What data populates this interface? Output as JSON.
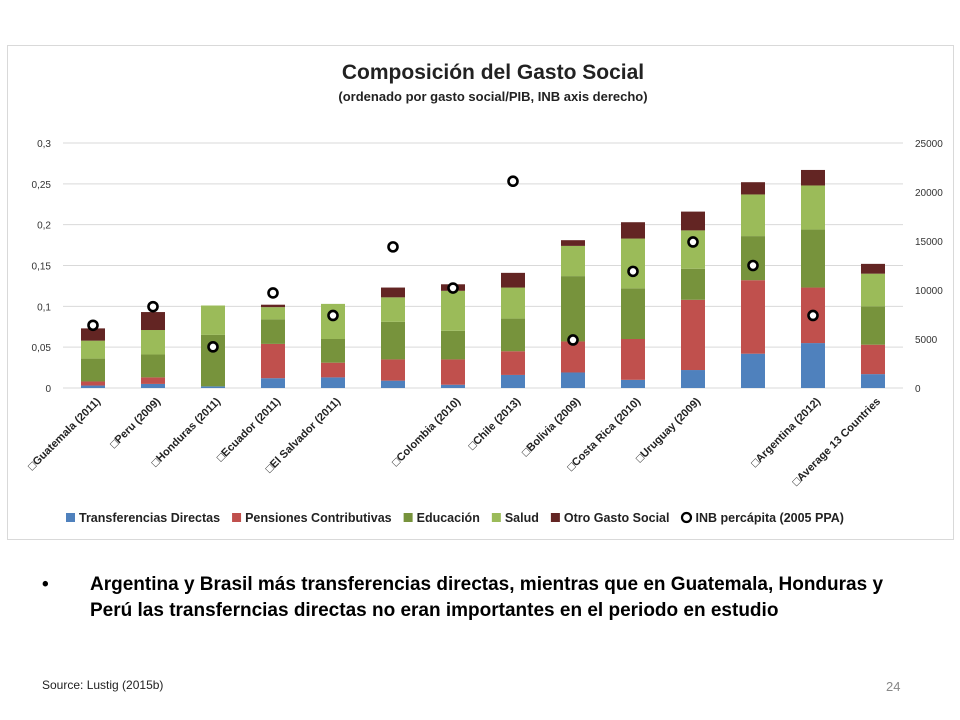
{
  "chart_data": {
    "type": "bar",
    "stacked": true,
    "title": "Composición del Gasto Social",
    "subtitle": "(ordenado por gasto social/PIB, INB axis derecho)",
    "categories": [
      "Guatemala (2011)",
      "Peru (2009)",
      "Honduras (2011)",
      "Ecuador (2011)",
      "El Salvador (2011)",
      "",
      "Colombia (2010)",
      "Chile (2013)",
      "Bolivia (2009)",
      "Costa Rica (2010)",
      "Uruguay (2009)",
      "",
      "Argentina (2012)",
      "Average 13 Countries"
    ],
    "category_markers": [
      true,
      true,
      true,
      true,
      true,
      false,
      true,
      true,
      true,
      true,
      true,
      false,
      true,
      true
    ],
    "y_left": {
      "min": 0,
      "max": 0.3,
      "ticks": [
        "0",
        "0,05",
        "0,1",
        "0,15",
        "0,2",
        "0,25",
        "0,3"
      ]
    },
    "y_right": {
      "min": 0,
      "max": 25000,
      "ticks": [
        "0",
        "5000",
        "10000",
        "15000",
        "20000",
        "25000"
      ]
    },
    "grid": true,
    "legend_position": "bottom",
    "series": [
      {
        "name": "Transferencias Directas",
        "color": "#4f81bd",
        "values": [
          0.003,
          0.005,
          0.002,
          0.012,
          0.013,
          0.009,
          0.004,
          0.016,
          0.019,
          0.01,
          0.022,
          0.042,
          0.055,
          0.017
        ]
      },
      {
        "name": "Pensiones Contributivas",
        "color": "#c0504d",
        "values": [
          0.005,
          0.008,
          0.0,
          0.042,
          0.018,
          0.026,
          0.031,
          0.029,
          0.038,
          0.05,
          0.086,
          0.09,
          0.068,
          0.036
        ]
      },
      {
        "name": "Educación",
        "color": "#77933c",
        "values": [
          0.028,
          0.028,
          0.063,
          0.03,
          0.029,
          0.046,
          0.035,
          0.04,
          0.08,
          0.062,
          0.038,
          0.054,
          0.071,
          0.047
        ]
      },
      {
        "name": "Salud",
        "color": "#9bbb59",
        "values": [
          0.022,
          0.03,
          0.036,
          0.015,
          0.043,
          0.03,
          0.049,
          0.038,
          0.037,
          0.061,
          0.047,
          0.051,
          0.054,
          0.04
        ]
      },
      {
        "name": "Otro Gasto Social",
        "color": "#632523",
        "values": [
          0.015,
          0.022,
          0.0,
          0.003,
          0.0,
          0.012,
          0.008,
          0.018,
          0.007,
          0.02,
          0.023,
          0.015,
          0.019,
          0.012
        ]
      }
    ],
    "markers": {
      "name": "INB percápita (2005 PPA)",
      "axis": "right",
      "values": [
        6400,
        8300,
        4200,
        9700,
        7400,
        14400,
        10200,
        21100,
        4900,
        11900,
        14900,
        12500,
        7400,
        null
      ]
    }
  },
  "bullet_text": "Argentina y Brasil más transferencias directas, mientras que en Guatemala, Honduras y Perú las transferncias directas no eran importantes en el periodo  en estudio",
  "source": "Source: Lustig (2015b)",
  "page_number": "24"
}
